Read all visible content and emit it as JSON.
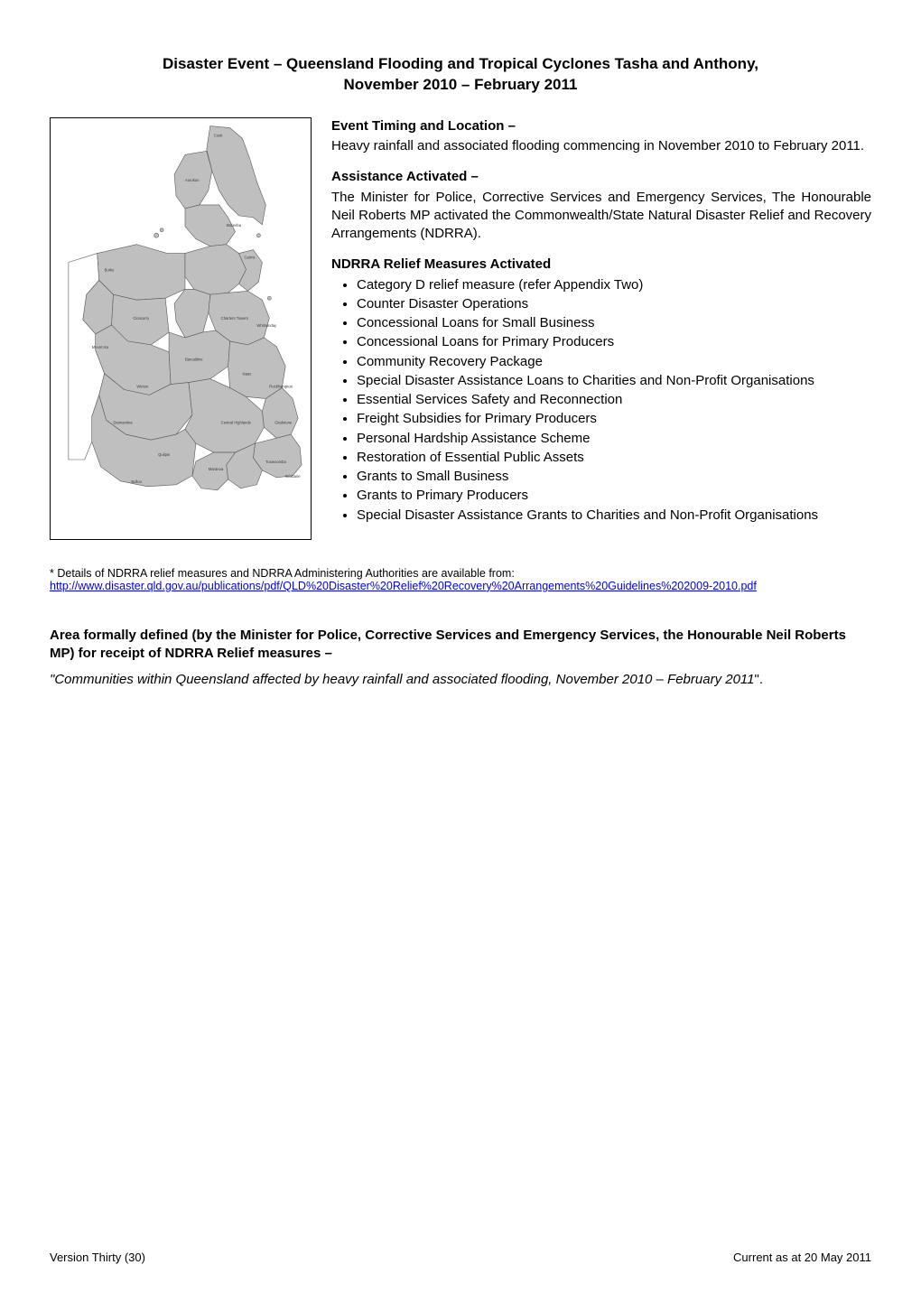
{
  "title_line1": "Disaster Event – Queensland Flooding and Tropical Cyclones Tasha and Anthony,",
  "title_line2": "November 2010 – February 2011",
  "sections": {
    "timing_head": "Event Timing and Location –",
    "timing_body": "Heavy rainfall and associated flooding commencing in November 2010 to February 2011.",
    "assist_head": "Assistance Activated –",
    "assist_body": "The Minister for Police, Corrective Services and Emergency Services, The Honourable Neil Roberts MP activated the Commonwealth/State Natural Disaster Relief and Recovery Arrangements (NDRRA).",
    "measures_head": "NDRRA Relief Measures Activated",
    "measures": [
      "Category D relief measure (refer Appendix Two)",
      "Counter Disaster Operations",
      "Concessional Loans for Small Business",
      "Concessional Loans for Primary Producers",
      "Community Recovery Package",
      "Special Disaster Assistance Loans to Charities and Non-Profit Organisations",
      "Essential Services Safety and Reconnection",
      "Freight Subsidies for Primary Producers",
      "Personal Hardship Assistance Scheme",
      "Restoration of Essential Public Assets",
      "Grants to Small Business",
      "Grants to Primary Producers",
      "Special Disaster Assistance Grants to Charities and Non-Profit Organisations"
    ]
  },
  "footnote": {
    "lead": "* Details of NDRRA relief measures and NDRRA Administering Authorities are available from:",
    "url": "http://www.disaster.qld.gov.au/publications/pdf/QLD%20Disaster%20Relief%20Recovery%20Arrangements%20Guidelines%202009-2010.pdf"
  },
  "area": {
    "head": "Area formally defined (by the Minister for Police, Corrective Services and Emergency Services, the Honourable Neil Roberts MP) for receipt of NDRRA Relief measures –",
    "body_italic": "\"Communities within Queensland affected by heavy rainfall and associated flooding, November 2010 – February 2011",
    "body_tail": "\"."
  },
  "footer": {
    "left": "Version Thirty (30)",
    "right": "Current as at 20 May 2011"
  },
  "map": {
    "fill": "#bfbfbf",
    "stroke": "#595959",
    "stroke_width": 0.6,
    "label_color": "#3b3b3b",
    "label_fontsize": 4.2
  }
}
